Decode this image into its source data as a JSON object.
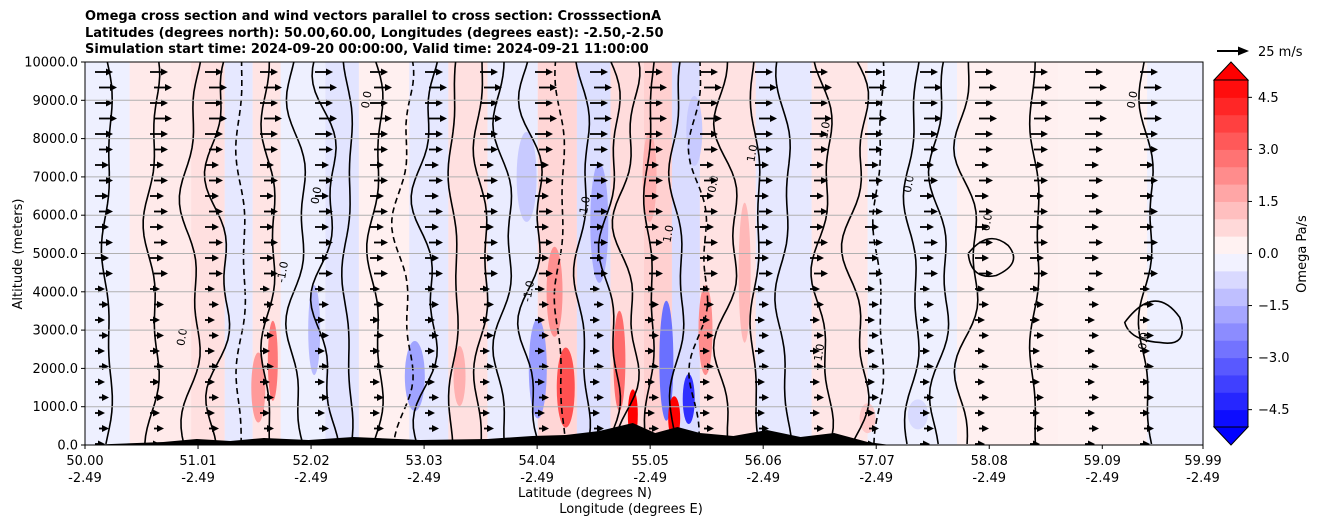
{
  "chart_data": {
    "type": "heatmap",
    "title_lines": [
      "Omega cross section and wind vectors parallel to cross section: CrosssectionA",
      "Latitudes (degrees north): 50.00,60.00, Longitudes (degrees east): -2.50,-2.50",
      "Simulation start time: 2024-09-20 00:00:00, Valid time: 2024-09-21 11:00:00"
    ],
    "ylabel": "Altitude (meters)",
    "xlabel_lines": [
      "Latitude (degrees N)",
      "Longitude (degrees E)"
    ],
    "ylim": [
      0,
      10000
    ],
    "xlim": [
      50.0,
      59.99
    ],
    "y_ticks": [
      "0.0",
      "1000.0",
      "2000.0",
      "3000.0",
      "4000.0",
      "5000.0",
      "6000.0",
      "7000.0",
      "8000.0",
      "9000.0",
      "10000.0"
    ],
    "x_ticks": [
      {
        "lat": "50.00",
        "lon": "-2.49"
      },
      {
        "lat": "51.01",
        "lon": "-2.49"
      },
      {
        "lat": "52.02",
        "lon": "-2.49"
      },
      {
        "lat": "53.03",
        "lon": "-2.49"
      },
      {
        "lat": "54.04",
        "lon": "-2.49"
      },
      {
        "lat": "55.05",
        "lon": "-2.49"
      },
      {
        "lat": "56.06",
        "lon": "-2.49"
      },
      {
        "lat": "57.07",
        "lon": "-2.49"
      },
      {
        "lat": "58.08",
        "lon": "-2.49"
      },
      {
        "lat": "59.09",
        "lon": "-2.49"
      },
      {
        "lat": "59.99",
        "lon": "-2.49"
      }
    ],
    "grid": "horizontal",
    "colorbar": {
      "label": "Omega Pa/s",
      "ticks": [
        "4.5",
        "3.0",
        "1.5",
        "0.0",
        "−1.5",
        "−3.0",
        "−4.5"
      ],
      "range": [
        -5,
        5
      ],
      "colormap": "bwr",
      "extend": "both"
    },
    "vector_key_label": "25 m/s",
    "contour_labels": [
      "0.0",
      "-1.0",
      "1.0"
    ],
    "colors": {
      "positive": "#ff0000",
      "negative": "#0000ff",
      "terrain": "#000000",
      "grid": "#b0b0b0"
    }
  }
}
